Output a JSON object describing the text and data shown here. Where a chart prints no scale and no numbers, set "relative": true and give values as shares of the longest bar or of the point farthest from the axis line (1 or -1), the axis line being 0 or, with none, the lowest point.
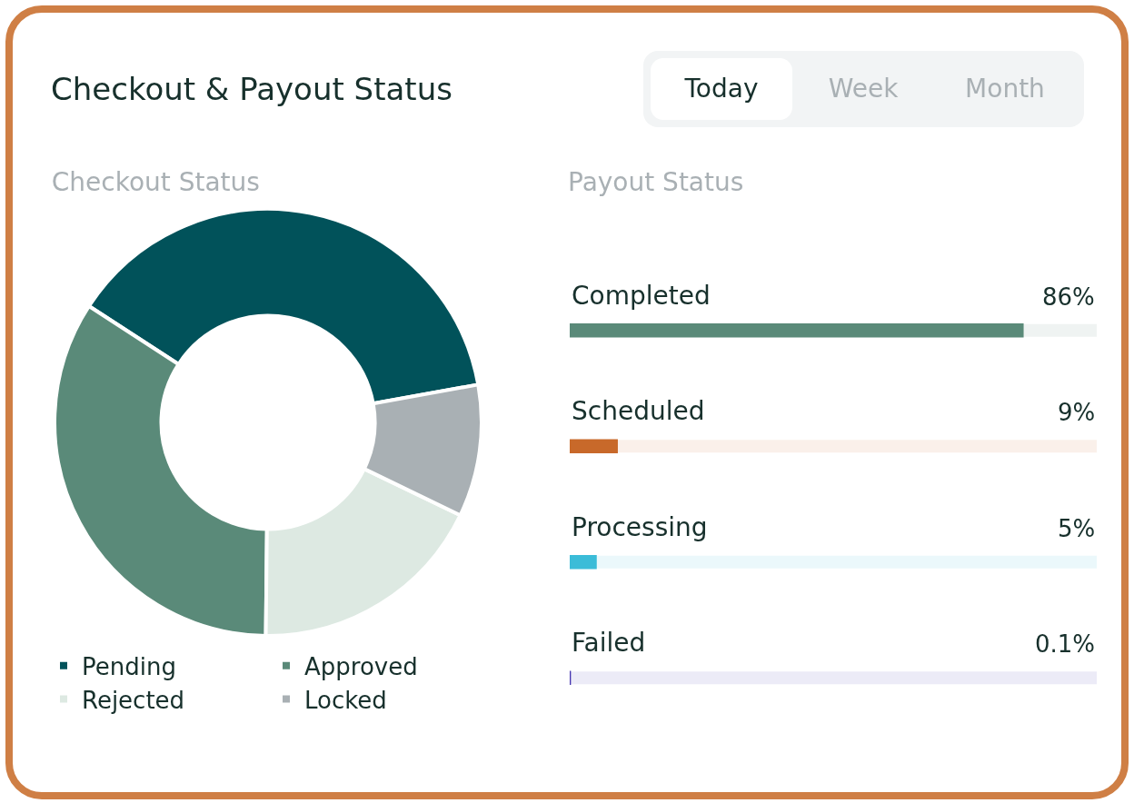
{
  "chart_data": [
    {
      "type": "other",
      "title": "Checkout & Payout Status",
      "annotations": [
        "Today",
        "Week",
        "Month"
      ]
    },
    {
      "type": "donut",
      "title": "Checkout Status",
      "relative": true,
      "legend": "bottom",
      "categories": [
        "Pending",
        "Approved",
        "Rejected",
        "Locked"
      ],
      "values": [
        38,
        34,
        18,
        10
      ],
      "colors": [
        "#01525a",
        "#5a8a79",
        "#dde9e2",
        "#a9b0b4"
      ]
    },
    {
      "type": "bar",
      "title": "Payout Status",
      "orientation": "horizontal",
      "tick_labels": false,
      "categories": [
        "Completed",
        "Scheduled",
        "Processing",
        "Failed"
      ],
      "values": [
        86,
        9,
        5,
        0.1
      ],
      "colors": [
        "#5a8a79",
        "#c8692a",
        "#3bbcd8",
        "#4535b0"
      ],
      "value_labels": [
        "86%",
        "9%",
        "5%",
        "0.1%"
      ],
      "xlim": [
        0,
        100
      ]
    }
  ]
}
